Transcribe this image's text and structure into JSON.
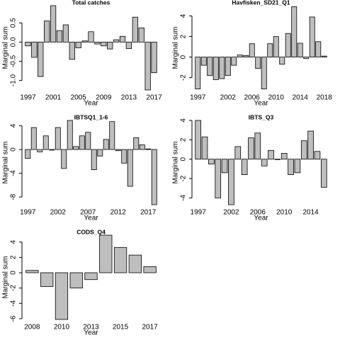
{
  "chart_data": [
    {
      "type": "bar",
      "title": "Total catches",
      "x_label": "Year",
      "y_label": "Marginal sum",
      "color": "#bebebe",
      "categories": [
        "1997",
        null,
        null,
        null,
        "2001",
        null,
        null,
        null,
        "2005",
        null,
        null,
        null,
        "2009",
        null,
        null,
        null,
        "2013",
        null,
        null,
        null,
        "2017"
      ],
      "values": [
        -0.1,
        -0.4,
        -0.9,
        0.55,
        0.95,
        0.3,
        0.45,
        -0.45,
        -0.15,
        0.03,
        0.27,
        -0.05,
        -0.1,
        -0.18,
        0.06,
        0.15,
        -0.17,
        0.65,
        0.37,
        -1.25,
        -0.8
      ],
      "ylim": [
        -1.25,
        0.95
      ],
      "yticks": [
        {
          "value": -1,
          "label": "-1.0"
        },
        -0.5,
        {
          "value": 0,
          "label": "0.0"
        },
        0.5
      ]
    },
    {
      "type": "bar",
      "title": "Havfisken_SD21_Q1",
      "x_label": "Year",
      "y_label": "Marginal sum",
      "color": "#bebebe",
      "categories": [
        "1997",
        null,
        null,
        null,
        null,
        "2002",
        null,
        null,
        null,
        "2006",
        null,
        null,
        null,
        "2010",
        null,
        null,
        null,
        "2014",
        null,
        null,
        null,
        "2018"
      ],
      "values": [
        -3.1,
        -0.8,
        -1.8,
        -2.2,
        -2.1,
        -1.8,
        -0.8,
        0.2,
        0.15,
        1.3,
        -1.1,
        -3.1,
        1.3,
        2.0,
        -0.7,
        2.3,
        4.9,
        1.35,
        -0.15,
        3.9,
        1.5,
        0.1
      ],
      "ylim": [
        -3.2,
        5.0
      ],
      "yticks": [
        -2,
        0,
        2,
        4
      ]
    },
    {
      "type": "bar",
      "title": "IBTSQ1_1-6",
      "x_label": "Year",
      "y_label": "Marginal sum",
      "color": "#bebebe",
      "categories": [
        "1997",
        null,
        null,
        null,
        null,
        "2002",
        null,
        null,
        null,
        null,
        "2007",
        null,
        null,
        null,
        null,
        "2012",
        null,
        null,
        null,
        null,
        "2017",
        null
      ],
      "values": [
        -1.5,
        3.7,
        -0.4,
        2.3,
        -0.1,
        3.7,
        -3.2,
        4.9,
        0.5,
        2.3,
        2.9,
        -3.4,
        -1.1,
        1.7,
        4.7,
        -0.2,
        -2.3,
        -6.2,
        2.0,
        0.8,
        0.1,
        -9.3
      ],
      "ylim": [
        -9.3,
        4.9
      ],
      "yticks": [
        -8,
        -4,
        0,
        4
      ]
    },
    {
      "type": "bar",
      "title": "IBTS_Q3",
      "x_label": "Year",
      "y_label": "Marginal sum",
      "color": "#bebebe",
      "categories": [
        "1997",
        null,
        null,
        null,
        null,
        "2002",
        null,
        null,
        null,
        "2006",
        null,
        null,
        null,
        "2010",
        null,
        null,
        null,
        "2014",
        null,
        null
      ],
      "values": [
        4.0,
        2.3,
        -0.5,
        -4.0,
        -1.4,
        -4.7,
        1.3,
        -1.6,
        2.2,
        2.7,
        -0.7,
        0.9,
        -0.05,
        0.6,
        -1.6,
        -1.4,
        1.9,
        2.9,
        0.8,
        -2.9
      ],
      "ylim": [
        -4.7,
        4.0
      ],
      "yticks": [
        -4,
        -2,
        0,
        2,
        4
      ]
    },
    {
      "type": "bar",
      "title": "CODS_Q4",
      "x_label": "Year",
      "y_label": "Marginal sum",
      "color": "#bebebe",
      "categories": [
        "2008",
        null,
        "2010",
        null,
        "2013",
        null,
        "2015",
        null,
        "2017"
      ],
      "values": [
        0.3,
        -1.8,
        -6.1,
        -2.0,
        -0.9,
        4.9,
        3.3,
        2.3,
        0.8
      ],
      "ylim": [
        -6.1,
        4.9
      ],
      "yticks": [
        -6,
        -4,
        -2,
        0,
        2,
        4
      ]
    }
  ]
}
